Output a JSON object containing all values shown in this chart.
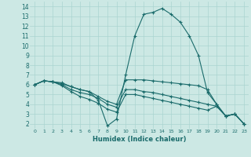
{
  "xlabel": "Humidex (Indice chaleur)",
  "background_color": "#cce8e4",
  "line_color": "#1a6b6b",
  "grid_color": "#aad4d0",
  "xlim": [
    -0.5,
    23.5
  ],
  "ylim": [
    1.5,
    14.5
  ],
  "xticks": [
    0,
    1,
    2,
    3,
    4,
    5,
    6,
    7,
    8,
    9,
    10,
    11,
    12,
    13,
    14,
    15,
    16,
    17,
    18,
    19,
    20,
    21,
    22,
    23
  ],
  "yticks": [
    2,
    3,
    4,
    5,
    6,
    7,
    8,
    9,
    10,
    11,
    12,
    13,
    14
  ],
  "lines": [
    {
      "x": [
        0,
        1,
        2,
        3,
        4,
        5,
        6,
        7,
        8,
        9,
        10,
        11,
        12,
        13,
        14,
        15,
        16,
        17,
        18,
        19,
        20,
        21,
        22,
        23
      ],
      "y": [
        6.0,
        6.4,
        6.3,
        6.2,
        5.8,
        5.5,
        5.3,
        4.4,
        1.8,
        2.5,
        7.0,
        11.0,
        13.2,
        13.4,
        13.8,
        13.2,
        12.4,
        11.0,
        9.0,
        5.2,
        4.0,
        2.8,
        3.0,
        2.0
      ]
    },
    {
      "x": [
        0,
        1,
        2,
        3,
        4,
        5,
        6,
        7,
        8,
        9,
        10,
        11,
        12,
        13,
        14,
        15,
        16,
        17,
        18,
        19,
        20,
        21,
        22,
        23
      ],
      "y": [
        6.0,
        6.4,
        6.3,
        6.1,
        5.8,
        5.5,
        5.3,
        4.8,
        4.3,
        4.0,
        6.5,
        6.5,
        6.5,
        6.4,
        6.3,
        6.2,
        6.1,
        6.0,
        5.9,
        5.5,
        4.0,
        2.8,
        3.0,
        2.0
      ]
    },
    {
      "x": [
        0,
        1,
        2,
        3,
        4,
        5,
        6,
        7,
        8,
        9,
        10,
        11,
        12,
        13,
        14,
        15,
        16,
        17,
        18,
        19,
        20,
        21,
        22,
        23
      ],
      "y": [
        6.0,
        6.4,
        6.3,
        6.0,
        5.5,
        5.2,
        5.0,
        4.6,
        4.0,
        3.7,
        5.5,
        5.5,
        5.3,
        5.2,
        5.0,
        4.8,
        4.6,
        4.4,
        4.2,
        4.0,
        3.8,
        2.8,
        3.0,
        2.0
      ]
    },
    {
      "x": [
        0,
        1,
        2,
        3,
        4,
        5,
        6,
        7,
        8,
        9,
        10,
        11,
        12,
        13,
        14,
        15,
        16,
        17,
        18,
        19,
        20,
        21,
        22,
        23
      ],
      "y": [
        6.0,
        6.4,
        6.3,
        5.9,
        5.3,
        4.8,
        4.5,
        4.1,
        3.5,
        3.2,
        5.0,
        5.0,
        4.8,
        4.6,
        4.4,
        4.2,
        4.0,
        3.8,
        3.6,
        3.4,
        3.8,
        2.8,
        3.0,
        2.0
      ]
    }
  ]
}
